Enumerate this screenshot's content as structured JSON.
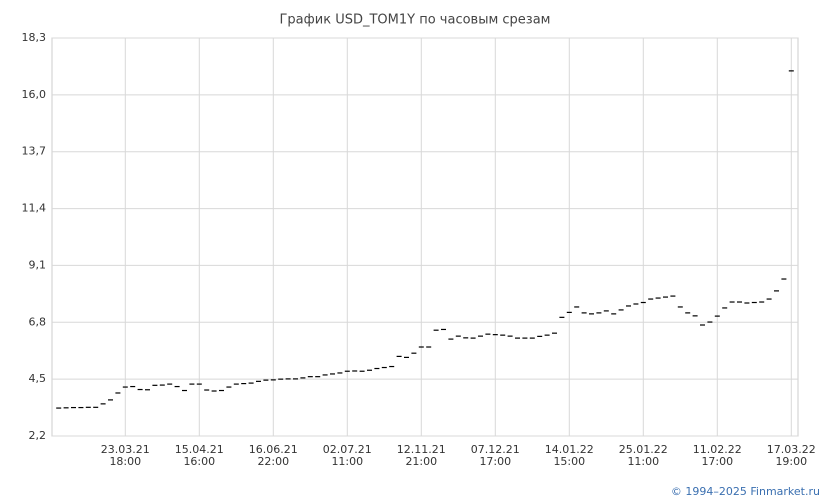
{
  "chart_data": {
    "type": "scatter",
    "marker": "dash",
    "color": "#000000",
    "title": "График USD_TOM1Y по часовым срезам",
    "footer": "© 1994–2025 Finmarket.ru",
    "categories": [
      null,
      null,
      null,
      null,
      null,
      null,
      null,
      null,
      null,
      "23.03.21",
      null,
      null,
      null,
      null,
      null,
      null,
      null,
      null,
      null,
      "15.04.21",
      null,
      null,
      null,
      null,
      null,
      null,
      null,
      null,
      null,
      "16.06.21",
      null,
      null,
      null,
      null,
      null,
      null,
      null,
      null,
      null,
      "02.07.21",
      null,
      null,
      null,
      null,
      null,
      null,
      null,
      null,
      null,
      "12.11.21",
      null,
      null,
      null,
      null,
      null,
      null,
      null,
      null,
      null,
      "07.12.21",
      null,
      null,
      null,
      null,
      null,
      null,
      null,
      null,
      null,
      "14.01.22",
      null,
      null,
      null,
      null,
      null,
      null,
      null,
      null,
      null,
      "25.01.22",
      null,
      null,
      null,
      null,
      null,
      null,
      null,
      null,
      null,
      "11.02.22",
      null,
      null,
      null,
      null,
      null,
      null,
      null,
      null,
      null,
      "17.03.22"
    ],
    "category_times": [
      null,
      null,
      null,
      null,
      null,
      null,
      null,
      null,
      null,
      "18:00",
      null,
      null,
      null,
      null,
      null,
      null,
      null,
      null,
      null,
      "16:00",
      null,
      null,
      null,
      null,
      null,
      null,
      null,
      null,
      null,
      "22:00",
      null,
      null,
      null,
      null,
      null,
      null,
      null,
      null,
      null,
      "11:00",
      null,
      null,
      null,
      null,
      null,
      null,
      null,
      null,
      null,
      "21:00",
      null,
      null,
      null,
      null,
      null,
      null,
      null,
      null,
      null,
      "17:00",
      null,
      null,
      null,
      null,
      null,
      null,
      null,
      null,
      null,
      "15:00",
      null,
      null,
      null,
      null,
      null,
      null,
      null,
      null,
      null,
      "11:00",
      null,
      null,
      null,
      null,
      null,
      null,
      null,
      null,
      null,
      "17:00",
      null,
      null,
      null,
      null,
      null,
      null,
      null,
      null,
      null,
      "19:00"
    ],
    "values": [
      3.33,
      3.34,
      3.35,
      3.35,
      3.36,
      3.36,
      3.5,
      3.66,
      3.94,
      4.18,
      4.2,
      4.08,
      4.07,
      4.25,
      4.26,
      4.3,
      4.2,
      4.04,
      4.3,
      4.3,
      4.06,
      4.02,
      4.04,
      4.18,
      4.3,
      4.32,
      4.34,
      4.41,
      4.46,
      4.47,
      4.5,
      4.51,
      4.51,
      4.55,
      4.6,
      4.6,
      4.67,
      4.71,
      4.75,
      4.82,
      4.83,
      4.82,
      4.86,
      4.93,
      4.97,
      5.01,
      5.42,
      5.38,
      5.55,
      5.8,
      5.8,
      6.48,
      6.51,
      6.12,
      6.24,
      6.17,
      6.16,
      6.24,
      6.32,
      6.3,
      6.28,
      6.24,
      6.16,
      6.16,
      6.16,
      6.23,
      6.28,
      6.36,
      7.0,
      7.2,
      7.42,
      7.18,
      7.14,
      7.18,
      7.26,
      7.14,
      7.3,
      7.46,
      7.54,
      7.6,
      7.74,
      7.78,
      7.82,
      7.86,
      7.42,
      7.18,
      7.06,
      6.69,
      6.81,
      7.05,
      7.38,
      7.62,
      7.62,
      7.58,
      7.6,
      7.62,
      7.74,
      8.07,
      8.55,
      16.97
    ],
    "ylim": [
      2.2,
      18.3
    ],
    "yticks": [
      {
        "value": 2.2,
        "label": "2,2"
      },
      {
        "value": 4.5,
        "label": "4,5"
      },
      {
        "value": 6.8,
        "label": "6,8"
      },
      {
        "value": 9.1,
        "label": "9,1"
      },
      {
        "value": 11.4,
        "label": "11,4"
      },
      {
        "value": 13.7,
        "label": "13,7"
      },
      {
        "value": 16.0,
        "label": "16,0"
      },
      {
        "value": 18.3,
        "label": "18,3"
      }
    ],
    "grid": true
  }
}
